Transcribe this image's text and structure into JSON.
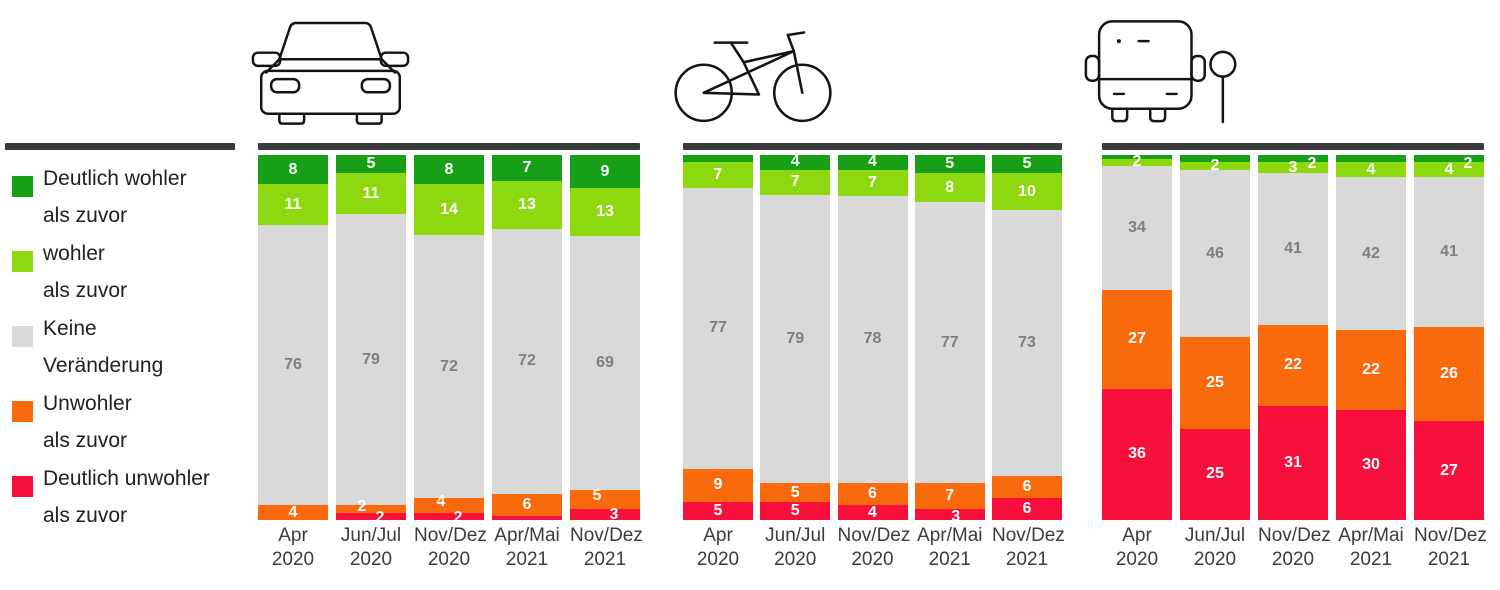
{
  "colors": {
    "deutlich_wohler": "#17A017",
    "wohler": "#8DD80E",
    "keine_veraenderung": "#D9D9D9",
    "unwohler": "#F96A0D",
    "deutlich_unwohler": "#F8103C",
    "divider": "#3b3b3b",
    "gray_label": "#7F7F7F",
    "white_label": "#FFFFFF"
  },
  "legend": {
    "items": [
      {
        "key": "deutlich_wohler",
        "color": "#17A017",
        "lines": [
          "Deutlich wohler",
          "als zuvor"
        ]
      },
      {
        "key": "wohler",
        "color": "#8DD80E",
        "lines": [
          "wohler",
          "als zuvor"
        ]
      },
      {
        "key": "keine_veraenderung",
        "color": "#D9D9D9",
        "lines": [
          "Keine",
          "Veränderung"
        ]
      },
      {
        "key": "unwohler",
        "color": "#F96A0D",
        "lines": [
          "Unwohler",
          "als zuvor"
        ]
      },
      {
        "key": "deutlich_unwohler",
        "color": "#F8103C",
        "lines": [
          "Deutlich unwohler",
          "als zuvor"
        ]
      }
    ]
  },
  "chart_data": [
    {
      "type": "bar",
      "stacked": true,
      "unit": "percent",
      "id": "car",
      "title": "Auto (car)",
      "legend_position": "left",
      "axis_range": [
        0,
        100
      ],
      "grid": false,
      "categories": [
        [
          "Apr",
          "2020"
        ],
        [
          "Jun/Jul",
          "2020"
        ],
        [
          "Nov/Dez",
          "2020"
        ],
        [
          "Apr/Mai",
          "2021"
        ],
        [
          "Nov/Dez",
          "2021"
        ]
      ],
      "series": [
        {
          "name": "Deutlich wohler als zuvor",
          "color": "#17A017",
          "label_color": "#FFFFFF",
          "values": [
            8,
            5,
            8,
            7,
            9
          ],
          "labels": [
            "8",
            "5",
            "8",
            "7",
            "9"
          ],
          "label_offsets": {}
        },
        {
          "name": "wohler als zuvor",
          "color": "#8DD80E",
          "label_color": "#FFFFFF",
          "values": [
            11,
            11,
            14,
            13,
            13
          ],
          "labels": [
            "11",
            "11",
            "14",
            "13",
            "13"
          ],
          "label_offsets": {}
        },
        {
          "name": "Keine Veränderung",
          "color": "#D9D9D9",
          "label_color": "#7F7F7F",
          "values": [
            76,
            79,
            72,
            72,
            69
          ],
          "labels": [
            "76",
            "79",
            "72",
            "72",
            "69"
          ],
          "label_offsets": {}
        },
        {
          "name": "Unwohler als zuvor",
          "color": "#F96A0D",
          "label_color": "#FFFFFF",
          "values": [
            4,
            2,
            4,
            6,
            5
          ],
          "labels": [
            "4",
            "2",
            "4",
            "6",
            "5"
          ],
          "label_offsets": {
            "1": [
              -9,
              -2
            ],
            "2": [
              -8,
              -3
            ],
            "4": [
              -8,
              -4
            ]
          }
        },
        {
          "name": "Deutlich unwohler als zuvor",
          "color": "#F8103C",
          "label_color": "#FFFFFF",
          "values": [
            0,
            2,
            2,
            1,
            3
          ],
          "labels": [
            "",
            "2",
            "2",
            "",
            "3"
          ],
          "label_offsets": {
            "1": [
              9,
              2
            ],
            "2": [
              9,
              2
            ],
            "4": [
              9,
              1
            ]
          }
        }
      ]
    },
    {
      "type": "bar",
      "stacked": true,
      "unit": "percent",
      "id": "bike",
      "title": "Fahrrad (bicycle)",
      "legend_position": "left",
      "axis_range": [
        0,
        100
      ],
      "grid": false,
      "categories": [
        [
          "Apr",
          "2020"
        ],
        [
          "Jun/Jul",
          "2020"
        ],
        [
          "Nov/Dez",
          "2020"
        ],
        [
          "Apr/Mai",
          "2021"
        ],
        [
          "Nov/Dez",
          "2021"
        ]
      ],
      "series": [
        {
          "name": "Deutlich wohler als zuvor",
          "color": "#17A017",
          "label_color": "#FFFFFF",
          "values": [
            2,
            4,
            4,
            5,
            5
          ],
          "labels": [
            "",
            "4",
            "4",
            "5",
            "5"
          ],
          "label_offsets": {}
        },
        {
          "name": "wohler als zuvor",
          "color": "#8DD80E",
          "label_color": "#FFFFFF",
          "values": [
            7,
            7,
            7,
            8,
            10
          ],
          "labels": [
            "7",
            "7",
            "7",
            "8",
            "10"
          ],
          "label_offsets": {}
        },
        {
          "name": "Keine Veränderung",
          "color": "#D9D9D9",
          "label_color": "#7F7F7F",
          "values": [
            77,
            79,
            78,
            77,
            73
          ],
          "labels": [
            "77",
            "79",
            "78",
            "77",
            "73"
          ],
          "label_offsets": {}
        },
        {
          "name": "Unwohler als zuvor",
          "color": "#F96A0D",
          "label_color": "#FFFFFF",
          "values": [
            9,
            5,
            6,
            7,
            6
          ],
          "labels": [
            "9",
            "5",
            "6",
            "7",
            "6"
          ],
          "label_offsets": {}
        },
        {
          "name": "Deutlich unwohler als zuvor",
          "color": "#F8103C",
          "label_color": "#FFFFFF",
          "values": [
            5,
            5,
            4,
            3,
            6
          ],
          "labels": [
            "5",
            "5",
            "4",
            "3",
            "6"
          ],
          "label_offsets": {
            "3": [
              6,
              2
            ]
          }
        }
      ]
    },
    {
      "type": "bar",
      "stacked": true,
      "unit": "percent",
      "id": "bus",
      "title": "ÖPNV (bus / public transport)",
      "legend_position": "left",
      "axis_range": [
        0,
        100
      ],
      "grid": false,
      "categories": [
        [
          "Apr",
          "2020"
        ],
        [
          "Jun/Jul",
          "2020"
        ],
        [
          "Nov/Dez",
          "2020"
        ],
        [
          "Apr/Mai",
          "2021"
        ],
        [
          "Nov/Dez",
          "2021"
        ]
      ],
      "series": [
        {
          "name": "Deutlich wohler als zuvor",
          "color": "#17A017",
          "label_color": "#FFFFFF",
          "values": [
            1,
            2,
            2,
            2,
            2
          ],
          "labels": [
            "",
            "",
            "2",
            "",
            "2"
          ],
          "label_offsets": {
            "2": [
              19,
              5
            ],
            "4": [
              19,
              5
            ]
          }
        },
        {
          "name": "wohler als zuvor",
          "color": "#8DD80E",
          "label_color": "#FFFFFF",
          "values": [
            2,
            2,
            3,
            4,
            4
          ],
          "labels": [
            "2",
            "2",
            "3",
            "4",
            "4"
          ],
          "label_offsets": {}
        },
        {
          "name": "Keine Veränderung",
          "color": "#D9D9D9",
          "label_color": "#7F7F7F",
          "values": [
            34,
            46,
            41,
            42,
            41
          ],
          "labels": [
            "34",
            "46",
            "41",
            "42",
            "41"
          ],
          "label_offsets": {}
        },
        {
          "name": "Unwohler als zuvor",
          "color": "#F96A0D",
          "label_color": "#FFFFFF",
          "values": [
            27,
            25,
            22,
            22,
            26
          ],
          "labels": [
            "27",
            "25",
            "22",
            "22",
            "26"
          ],
          "label_offsets": {}
        },
        {
          "name": "Deutlich unwohler als zuvor",
          "color": "#F8103C",
          "label_color": "#FFFFFF",
          "values": [
            36,
            25,
            31,
            30,
            27
          ],
          "labels": [
            "36",
            "25",
            "31",
            "30",
            "27"
          ],
          "label_offsets": {}
        }
      ]
    }
  ]
}
